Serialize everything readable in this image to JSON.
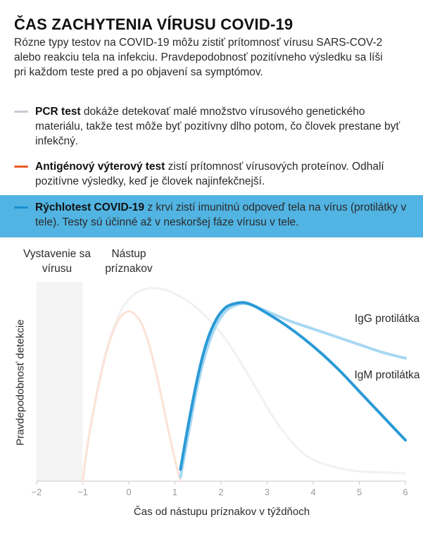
{
  "header": {
    "title": "ČAS ZACHYTENIA VÍRUSU COVID-19",
    "intro": "Rózne typy testov na COVID-19 môžu zistiť prítomnosť vírusu SARS-COV-2 alebo reakciu tela na infekciu. Pravdepodobnosť pozitívneho výsledku sa líši pri každom teste pred a po objavení sa symptómov."
  },
  "legend": [
    {
      "bold": "PCR test",
      "text": " dokáže detekovať malé množstvo vírusového genetického materiálu, takže test môže byť pozitívny dlho potom, čo človek prestane byť infekčný.",
      "color": "#c9ccd4"
    },
    {
      "bold": "Antigénový výterový test",
      "text": " zistí prítomnosť vírusových proteínov. Odhalí pozitívne výsledky, keď je človek najinfekčnejší.",
      "color": "#f05a28"
    },
    {
      "bold": "Rýchlotest COVID-19",
      "text": " z krvi zistí imunitnú odpoveď tela na vírus (protilátky v tele). Testy sú účinné až v neskoršej fáze vírusu v tele.",
      "color": "#1b8fd0"
    }
  ],
  "annotations": {
    "exposure": "Vystavenie sa vírusu",
    "onset": "Nástup príznakov"
  },
  "curve_labels": {
    "igg": "IgG protilátka",
    "igm": "IgM protilátka"
  },
  "chart_data": {
    "type": "line",
    "xlabel": "Čas od nástupu príznakov v týždňoch",
    "ylabel": "Pravdepodobnosť detekcie",
    "xlim": [
      -2,
      6
    ],
    "ylim": [
      0,
      1
    ],
    "xticks": [
      -2,
      -1,
      0,
      1,
      2,
      3,
      4,
      5,
      6
    ],
    "grid": false,
    "shaded_region": {
      "from": -2,
      "to": -1,
      "color": "#f4f4f4"
    },
    "series": [
      {
        "name": "PCR test",
        "color": "#f1f1f3",
        "x": [
          -1,
          -0.8,
          -0.5,
          -0.2,
          0,
          0.2,
          0.5,
          0.8,
          1.0,
          1.3,
          1.6,
          2.0,
          2.4,
          2.8,
          3.1,
          3.4,
          3.7,
          4.0,
          4.5,
          5.0,
          5.5,
          6.0
        ],
        "y": [
          0,
          0.32,
          0.66,
          0.86,
          0.93,
          0.97,
          0.99,
          0.98,
          0.96,
          0.92,
          0.86,
          0.76,
          0.62,
          0.46,
          0.34,
          0.24,
          0.16,
          0.11,
          0.07,
          0.05,
          0.045,
          0.04
        ]
      },
      {
        "name": "Antigénový výterový test",
        "color": "#fce2d6",
        "x": [
          -1,
          -0.9,
          -0.75,
          -0.6,
          -0.45,
          -0.3,
          -0.15,
          0,
          0.1,
          0.25,
          0.4,
          0.55,
          0.7,
          0.85,
          1.0,
          1.12
        ],
        "y": [
          0,
          0.18,
          0.38,
          0.55,
          0.69,
          0.79,
          0.85,
          0.87,
          0.86,
          0.82,
          0.73,
          0.6,
          0.44,
          0.27,
          0.11,
          0
        ]
      },
      {
        "name": "IgG protilátka",
        "color": "#a8d8f2",
        "x": [
          1.12,
          1.3,
          1.5,
          1.7,
          1.9,
          2.1,
          2.3,
          2.5,
          2.7,
          3.0,
          3.5,
          4.0,
          4.5,
          5.0,
          5.5,
          6.0
        ],
        "y": [
          0.02,
          0.25,
          0.5,
          0.68,
          0.8,
          0.87,
          0.9,
          0.91,
          0.9,
          0.87,
          0.82,
          0.78,
          0.74,
          0.7,
          0.66,
          0.63
        ]
      },
      {
        "name": "IgM protilátka",
        "color": "#2a9ad6",
        "x": [
          1.12,
          1.3,
          1.5,
          1.7,
          1.9,
          2.1,
          2.3,
          2.5,
          2.7,
          3.0,
          3.4,
          3.8,
          4.2,
          4.6,
          5.0,
          5.4,
          5.8,
          6.0
        ],
        "y": [
          0.06,
          0.3,
          0.54,
          0.72,
          0.83,
          0.89,
          0.91,
          0.915,
          0.9,
          0.86,
          0.8,
          0.73,
          0.65,
          0.56,
          0.46,
          0.36,
          0.26,
          0.21
        ]
      }
    ]
  }
}
